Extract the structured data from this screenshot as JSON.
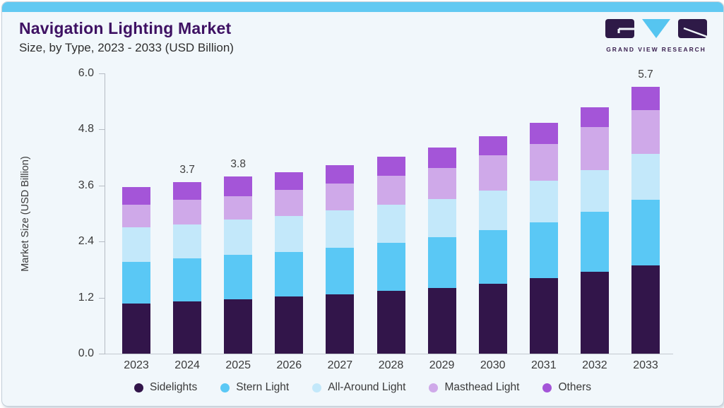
{
  "header": {
    "title": "Navigation Lighting Market",
    "subtitle": "Size, by Type, 2023 - 2033 (USD Billion)"
  },
  "logo": {
    "brand": "GRAND VIEW RESEARCH",
    "dark_color": "#2e1a47",
    "blue_color": "#56c5f0"
  },
  "chart_data": {
    "type": "bar",
    "stacked": true,
    "title": "Navigation Lighting Market Size, by Type, 2023 - 2033 (USD Billion)",
    "ylabel": "Market Size (USD Billion)",
    "xlabel": "",
    "ylim": [
      0,
      6.0
    ],
    "y_ticks": [
      "6.0",
      "4.8",
      "3.6",
      "2.4",
      "1.2",
      "0.0"
    ],
    "grid": false,
    "legend_position": "bottom",
    "categories": [
      "2023",
      "2024",
      "2025",
      "2026",
      "2027",
      "2028",
      "2029",
      "2030",
      "2031",
      "2032",
      "2033"
    ],
    "series": [
      {
        "name": "Sidelights",
        "color": "#32154a",
        "values": [
          1.08,
          1.12,
          1.17,
          1.22,
          1.27,
          1.35,
          1.41,
          1.5,
          1.61,
          1.75,
          1.89
        ]
      },
      {
        "name": "Stern Light",
        "color": "#5ac8f5",
        "values": [
          0.89,
          0.92,
          0.95,
          0.96,
          0.99,
          1.02,
          1.08,
          1.14,
          1.2,
          1.29,
          1.4
        ]
      },
      {
        "name": "All-Around Light",
        "color": "#c3e8fa",
        "values": [
          0.74,
          0.73,
          0.75,
          0.76,
          0.81,
          0.82,
          0.82,
          0.85,
          0.9,
          0.89,
          0.99
        ]
      },
      {
        "name": "Masthead Light",
        "color": "#cfa9e9",
        "values": [
          0.48,
          0.52,
          0.5,
          0.56,
          0.57,
          0.62,
          0.67,
          0.75,
          0.78,
          0.92,
          0.94
        ]
      },
      {
        "name": "Others",
        "color": "#a455d8",
        "values": [
          0.38,
          0.38,
          0.42,
          0.39,
          0.39,
          0.41,
          0.43,
          0.41,
          0.45,
          0.43,
          0.49
        ]
      }
    ],
    "bar_total_labels": [
      "",
      "3.7",
      "3.8",
      "",
      "",
      "",
      "",
      "",
      "",
      "",
      "5.7"
    ]
  }
}
